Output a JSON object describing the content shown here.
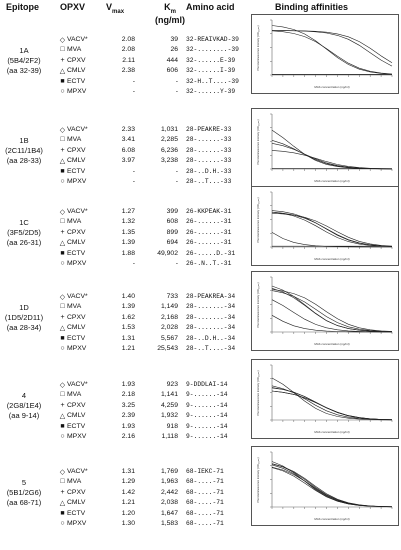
{
  "header": {
    "epitope": "Epitope",
    "opxv": "OPXV",
    "vmax_base": "V",
    "vmax_sub": "max",
    "km_base": "K",
    "km_sub": "m",
    "km_unit": "(ng/ml)",
    "amino_acid": "Amino acid",
    "binding": "Binding affinities"
  },
  "panel_labels": {
    "ylabel": "Photoluminescence intensity (OD₄₅₀ₙₘ)",
    "xlabel": "MAb concentration (ng/ml)"
  },
  "markers": {
    "diamond": "◇",
    "square": "□",
    "plus": "+",
    "triangle": "△",
    "filled_square": "■",
    "circle": "○"
  },
  "epitopes": [
    {
      "id": "1A",
      "mabs": "(5B4/2F2)",
      "range": "(aa 32-39)",
      "rows": [
        {
          "marker": "diamond",
          "virus": "VACV*",
          "vmax": "2.08",
          "km": "39",
          "aa": "32-REAIVKAD-39"
        },
        {
          "marker": "square",
          "virus": "MVA",
          "vmax": "2.08",
          "km": "26",
          "aa": "32-........-39"
        },
        {
          "marker": "plus",
          "virus": "CPXV",
          "vmax": "2.11",
          "km": "444",
          "aa": "32-......E-39"
        },
        {
          "marker": "triangle",
          "virus": "CMLV",
          "vmax": "2.38",
          "km": "606",
          "aa": "32-......I-39"
        },
        {
          "marker": "filled_square",
          "virus": "ECTV",
          "vmax": "-",
          "km": "-",
          "aa": "32-H..T....-39"
        },
        {
          "marker": "circle",
          "virus": "MPXV",
          "vmax": "-",
          "km": "-",
          "aa": "32-......Y-39"
        }
      ]
    },
    {
      "id": "1B",
      "mabs": "(2C11/1B4)",
      "range": "(aa 28-33)",
      "rows": [
        {
          "marker": "diamond",
          "virus": "VACV*",
          "vmax": "2.33",
          "km": "1,031",
          "aa": "28-PEAKRE-33"
        },
        {
          "marker": "square",
          "virus": "MVA",
          "vmax": "3.41",
          "km": "2,285",
          "aa": "28-......-33"
        },
        {
          "marker": "plus",
          "virus": "CPXV",
          "vmax": "6.08",
          "km": "6,236",
          "aa": "28-......-33"
        },
        {
          "marker": "triangle",
          "virus": "CMLV",
          "vmax": "3.97",
          "km": "3,238",
          "aa": "28-......-33"
        },
        {
          "marker": "filled_square",
          "virus": "ECTV",
          "vmax": "-",
          "km": "-",
          "aa": "28-..D.H.-33"
        },
        {
          "marker": "circle",
          "virus": "MPXV",
          "vmax": "-",
          "km": "-",
          "aa": "28-..T...-33"
        }
      ]
    },
    {
      "id": "1C",
      "mabs": "(3F5/2D5)",
      "range": "(aa 26-31)",
      "rows": [
        {
          "marker": "diamond",
          "virus": "VACV*",
          "vmax": "1.27",
          "km": "399",
          "aa": "26-KKPEAK-31"
        },
        {
          "marker": "square",
          "virus": "MVA",
          "vmax": "1.32",
          "km": "608",
          "aa": "26-......-31"
        },
        {
          "marker": "plus",
          "virus": "CPXV",
          "vmax": "1.35",
          "km": "899",
          "aa": "26-......-31"
        },
        {
          "marker": "triangle",
          "virus": "CMLV",
          "vmax": "1.39",
          "km": "694",
          "aa": "26-......-31"
        },
        {
          "marker": "filled_square",
          "virus": "ECTV",
          "vmax": "1.88",
          "km": "49,902",
          "aa": "26-.....D.-31"
        },
        {
          "marker": "circle",
          "virus": "MPXV",
          "vmax": "-",
          "km": "-",
          "aa": "26-.N..T.-31"
        }
      ]
    },
    {
      "id": "1D",
      "mabs": "(1D5/2D11)",
      "range": "(aa 28-34)",
      "rows": [
        {
          "marker": "diamond",
          "virus": "VACV*",
          "vmax": "1.40",
          "km": "733",
          "aa": "28-PEAKREA-34"
        },
        {
          "marker": "square",
          "virus": "MVA",
          "vmax": "1.39",
          "km": "1,149",
          "aa": "28-.......-34"
        },
        {
          "marker": "plus",
          "virus": "CPXV",
          "vmax": "1.62",
          "km": "2,168",
          "aa": "28-.......-34"
        },
        {
          "marker": "triangle",
          "virus": "CMLV",
          "vmax": "1.53",
          "km": "2,028",
          "aa": "28-.......-34"
        },
        {
          "marker": "filled_square",
          "virus": "ECTV",
          "vmax": "1.31",
          "km": "5,567",
          "aa": "28-..D.H..-34"
        },
        {
          "marker": "circle",
          "virus": "MPXV",
          "vmax": "1.21",
          "km": "25,543",
          "aa": "28-..T....-34"
        }
      ]
    },
    {
      "id": "4",
      "mabs": "(2G8/1E4)",
      "range": "(aa 9-14)",
      "rows": [
        {
          "marker": "diamond",
          "virus": "VACV*",
          "vmax": "1.93",
          "km": "923",
          "aa": "9-DDDLAI-14"
        },
        {
          "marker": "square",
          "virus": "MVA",
          "vmax": "2.18",
          "km": "1,141",
          "aa": "9-......-14"
        },
        {
          "marker": "plus",
          "virus": "CPXV",
          "vmax": "3.25",
          "km": "4,259",
          "aa": "9-......-14"
        },
        {
          "marker": "triangle",
          "virus": "CMLV",
          "vmax": "2.39",
          "km": "1,932",
          "aa": "9-......-14"
        },
        {
          "marker": "filled_square",
          "virus": "ECTV",
          "vmax": "1.93",
          "km": "918",
          "aa": "9-......-14"
        },
        {
          "marker": "circle",
          "virus": "MPXV",
          "vmax": "2.16",
          "km": "1,118",
          "aa": "9-......-14"
        }
      ]
    },
    {
      "id": "5",
      "mabs": "(5B1/2G6)",
      "range": "(aa 68-71)",
      "rows": [
        {
          "marker": "diamond",
          "virus": "VACV*",
          "vmax": "1.31",
          "km": "1,769",
          "aa": "68-IEKC-71"
        },
        {
          "marker": "square",
          "virus": "MVA",
          "vmax": "1.29",
          "km": "1,963",
          "aa": "68-....-71"
        },
        {
          "marker": "plus",
          "virus": "CPXV",
          "vmax": "1.42",
          "km": "2,442",
          "aa": "68-....-71"
        },
        {
          "marker": "triangle",
          "virus": "CMLV",
          "vmax": "1.21",
          "km": "2,038",
          "aa": "68-....-71"
        },
        {
          "marker": "filled_square",
          "virus": "ECTV",
          "vmax": "1.20",
          "km": "1,647",
          "aa": "68-....-71"
        },
        {
          "marker": "circle",
          "virus": "MPXV",
          "vmax": "1.30",
          "km": "1,583",
          "aa": "68-....-71"
        }
      ]
    }
  ]
}
